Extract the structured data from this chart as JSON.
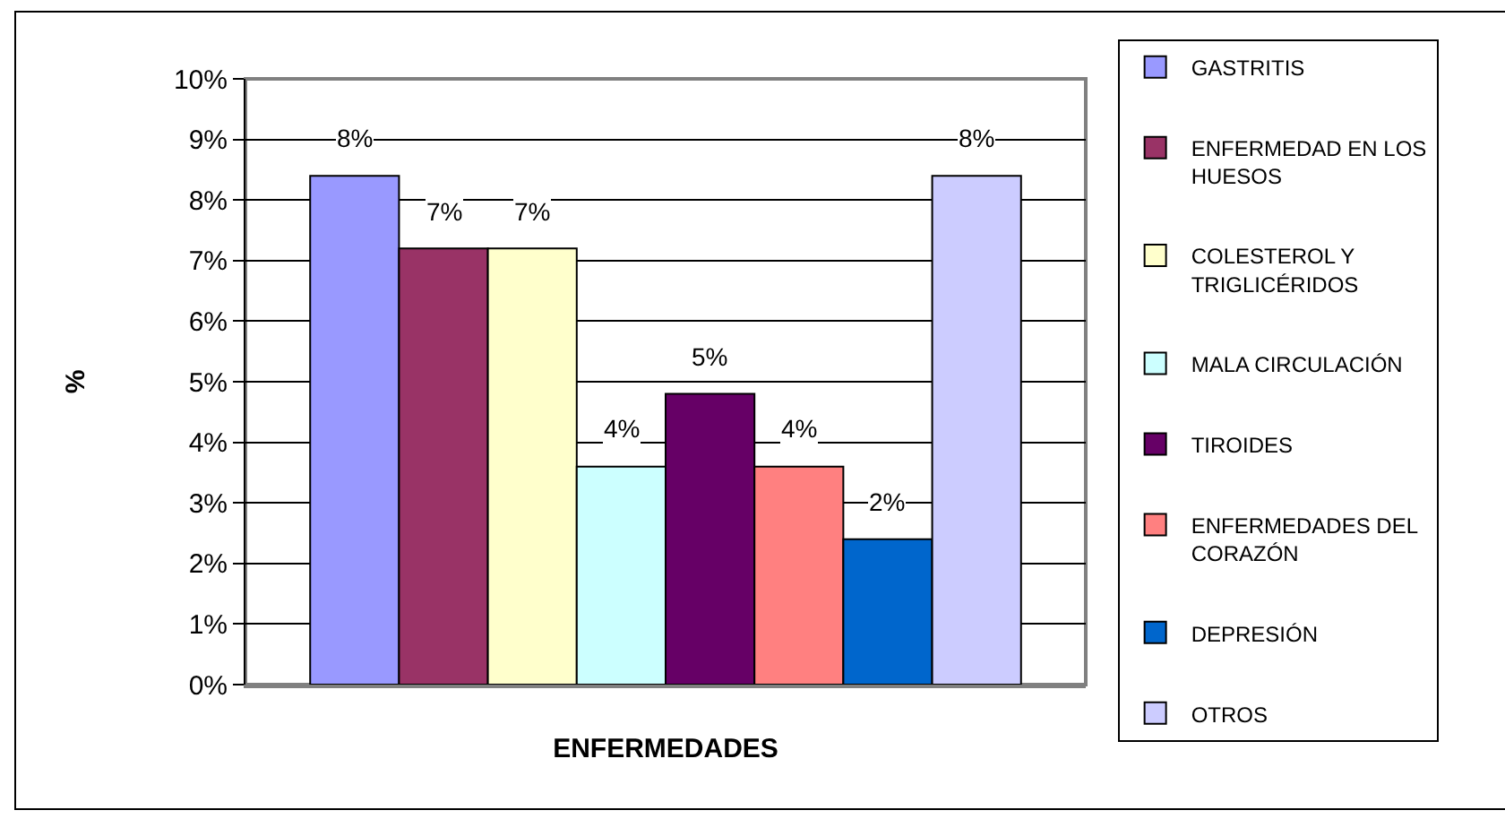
{
  "chart_data": {
    "type": "bar",
    "xlabel": "ENFERMEDADES",
    "ylabel": "%",
    "categories": [
      null
    ],
    "series": [
      {
        "name": "GASTRITIS",
        "color": "#9999ff",
        "values": [
          8.4
        ],
        "value_labels": [
          "8%"
        ]
      },
      {
        "name": "ENFERMEDAD EN LOS HUESOS",
        "color": "#993366",
        "values": [
          7.2
        ],
        "value_labels": [
          "7%"
        ]
      },
      {
        "name": "COLESTEROL Y TRIGLICÉRIDOS",
        "color": "#ffffcc",
        "values": [
          7.2
        ],
        "value_labels": [
          "7%"
        ]
      },
      {
        "name": "MALA CIRCULACIÓN",
        "color": "#ccffff",
        "values": [
          3.6
        ],
        "value_labels": [
          "4%"
        ]
      },
      {
        "name": "TIROIDES",
        "color": "#660066",
        "values": [
          4.8
        ],
        "value_labels": [
          "5%"
        ]
      },
      {
        "name": "ENFERMEDADES DEL CORAZÓN",
        "color": "#ff8080",
        "values": [
          3.6
        ],
        "value_labels": [
          "4%"
        ]
      },
      {
        "name": "DEPRESIÓN",
        "color": "#0066cc",
        "values": [
          2.4
        ],
        "value_labels": [
          "2%"
        ]
      },
      {
        "name": "OTROS",
        "color": "#ccccff",
        "values": [
          8.4
        ],
        "value_labels": [
          "8%"
        ]
      }
    ],
    "ylim": [
      0,
      10
    ],
    "yticks": [
      {
        "value": 0,
        "label": "0%"
      },
      {
        "value": 1,
        "label": "1%"
      },
      {
        "value": 2,
        "label": "2%"
      },
      {
        "value": 3,
        "label": "3%"
      },
      {
        "value": 4,
        "label": "4%"
      },
      {
        "value": 5,
        "label": "5%"
      },
      {
        "value": 6,
        "label": "6%"
      },
      {
        "value": 7,
        "label": "7%"
      },
      {
        "value": 8,
        "label": "8%"
      },
      {
        "value": 9,
        "label": "9%"
      },
      {
        "value": 10,
        "label": "10%"
      }
    ],
    "grid": "y",
    "legend": "right"
  }
}
